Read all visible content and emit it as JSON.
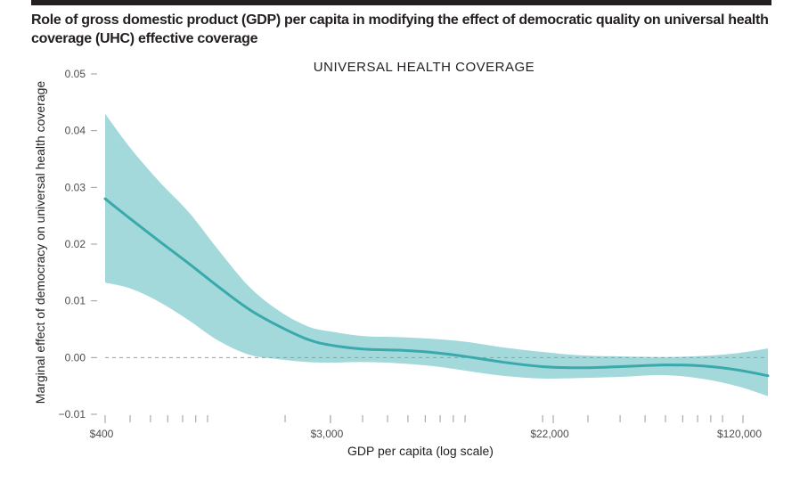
{
  "figure": {
    "title": "Role of gross domestic product (GDP) per capita in modifying the effect of democratic quality on universal health coverage (UHC)  effective  coverage"
  },
  "chart_data": {
    "type": "line",
    "title": "UNIVERSAL HEALTH COVERAGE",
    "xlabel": "GDP per capita (log scale)",
    "ylabel": "Marginal effect of democracy on universal health coverage",
    "x_scale": "log",
    "xlim": [
      400,
      150000
    ],
    "ylim": [
      -0.01,
      0.05
    ],
    "y_ticks": [
      {
        "value": 0.05,
        "label": "0.05"
      },
      {
        "value": 0.04,
        "label": "0.04"
      },
      {
        "value": 0.03,
        "label": "0.03"
      },
      {
        "value": 0.02,
        "label": "0.02"
      },
      {
        "value": 0.01,
        "label": "0.01"
      },
      {
        "value": 0.0,
        "label": "0.00"
      },
      {
        "value": -0.01,
        "label": "−0.01"
      }
    ],
    "x_ticks": [
      {
        "value": 400,
        "label": "$400"
      },
      {
        "value": 3000,
        "label": "$3,000"
      },
      {
        "value": 22000,
        "label": "$22,000"
      },
      {
        "value": 120000,
        "label": "$120,000"
      }
    ],
    "reference_line": 0,
    "series": [
      {
        "x": [
          400,
          500,
          650,
          850,
          1100,
          1450,
          1900,
          2450,
          3000,
          4000,
          5500,
          7500,
          10000,
          14000,
          20000,
          28000,
          40000,
          60000,
          85000,
          115000,
          150000
        ],
        "y": [
          0.028,
          0.0245,
          0.0205,
          0.0165,
          0.0125,
          0.0085,
          0.0055,
          0.0032,
          0.0022,
          0.0015,
          0.0013,
          0.0009,
          0.0002,
          -0.0008,
          -0.0016,
          -0.0018,
          -0.0016,
          -0.0013,
          -0.0015,
          -0.0022,
          -0.0032
        ],
        "lower": [
          0.0132,
          0.0122,
          0.0098,
          0.0065,
          0.003,
          0.0005,
          -0.0003,
          -0.0008,
          -0.0009,
          -0.0008,
          -0.001,
          -0.0015,
          -0.0023,
          -0.0032,
          -0.0037,
          -0.0036,
          -0.0034,
          -0.0031,
          -0.0038,
          -0.0051,
          -0.0068
        ],
        "upper": [
          0.043,
          0.037,
          0.031,
          0.0255,
          0.019,
          0.0125,
          0.0082,
          0.0055,
          0.0046,
          0.0038,
          0.0036,
          0.0033,
          0.0028,
          0.0018,
          0.001,
          0.0004,
          0.0002,
          0.0001,
          0.0003,
          0.0008,
          0.0016
        ]
      }
    ],
    "colors": {
      "line": "#3aa9ab",
      "band": "#a3d9db",
      "reference": "#9b9b9b",
      "axis": "#9b9b9b"
    },
    "grid": false
  }
}
